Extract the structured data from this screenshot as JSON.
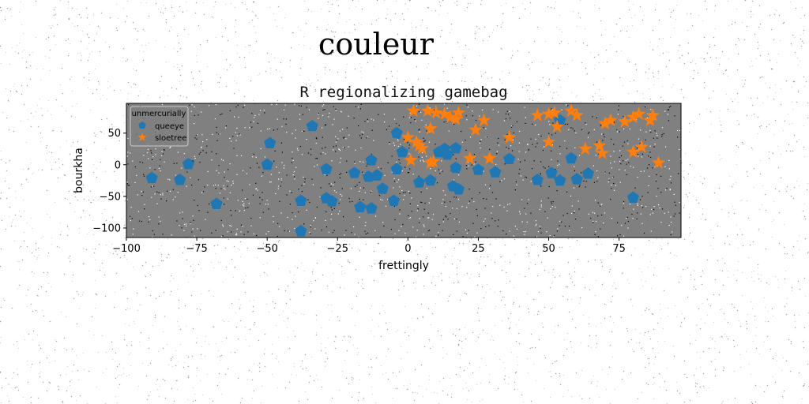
{
  "figure": {
    "suptitle": "couleur"
  },
  "chart_data": {
    "type": "scatter",
    "title": "R regionalizing gamebag",
    "xlabel": "frettingly",
    "ylabel": "bourkha",
    "xlim": [
      -100,
      97
    ],
    "ylim": [
      -115,
      97
    ],
    "xticks": [
      -100,
      -75,
      -50,
      -25,
      0,
      25,
      50,
      75
    ],
    "yticks": [
      -100,
      -50,
      0,
      50
    ],
    "grid": false,
    "background": "#808080",
    "legend": {
      "title": "unmercurially",
      "position": "top-left"
    },
    "series": [
      {
        "name": "queeye",
        "marker": "pentagon",
        "color": "#1f77b4",
        "points": [
          [
            -91,
            -21
          ],
          [
            -81,
            -24
          ],
          [
            -78,
            1
          ],
          [
            -68,
            -62
          ],
          [
            -49,
            34
          ],
          [
            -50,
            0
          ],
          [
            -34,
            61
          ],
          [
            -38,
            -57
          ],
          [
            -38,
            -105
          ],
          [
            -29,
            -7
          ],
          [
            -29,
            -53
          ],
          [
            -27,
            -58
          ],
          [
            -19,
            -13
          ],
          [
            -17,
            -67
          ],
          [
            -14,
            -19
          ],
          [
            -13,
            -69
          ],
          [
            -11,
            -17
          ],
          [
            -9,
            -38
          ],
          [
            -13,
            7
          ],
          [
            -5,
            -57
          ],
          [
            -4,
            -7
          ],
          [
            -4,
            50
          ],
          [
            -2,
            20
          ],
          [
            4,
            -28
          ],
          [
            8,
            -25
          ],
          [
            11,
            20
          ],
          [
            13,
            25
          ],
          [
            17,
            26
          ],
          [
            14,
            16
          ],
          [
            16,
            -34
          ],
          [
            18,
            -39
          ],
          [
            17,
            -5
          ],
          [
            25,
            -8
          ],
          [
            31,
            -12
          ],
          [
            36,
            9
          ],
          [
            46,
            -24
          ],
          [
            51,
            -13
          ],
          [
            54,
            -25
          ],
          [
            54,
            70
          ],
          [
            58,
            10
          ],
          [
            60,
            -23
          ],
          [
            64,
            -14
          ],
          [
            80,
            -52
          ]
        ]
      },
      {
        "name": "sloetree",
        "marker": "star",
        "color": "#ff7f0e",
        "points": [
          [
            2,
            85
          ],
          [
            7,
            85
          ],
          [
            10,
            82
          ],
          [
            13,
            80
          ],
          [
            15,
            75
          ],
          [
            17,
            72
          ],
          [
            18,
            82
          ],
          [
            8,
            57
          ],
          [
            0,
            43
          ],
          [
            3,
            36
          ],
          [
            4,
            30
          ],
          [
            5,
            26
          ],
          [
            1,
            7
          ],
          [
            8,
            3
          ],
          [
            9,
            5
          ],
          [
            24,
            55
          ],
          [
            27,
            70
          ],
          [
            22,
            10
          ],
          [
            29,
            10
          ],
          [
            36,
            43
          ],
          [
            46,
            78
          ],
          [
            50,
            80
          ],
          [
            52,
            82
          ],
          [
            50,
            36
          ],
          [
            53,
            60
          ],
          [
            58,
            85
          ],
          [
            60,
            78
          ],
          [
            63,
            25
          ],
          [
            68,
            30
          ],
          [
            69,
            18
          ],
          [
            70,
            65
          ],
          [
            72,
            70
          ],
          [
            77,
            68
          ],
          [
            80,
            75
          ],
          [
            82,
            80
          ],
          [
            86,
            70
          ],
          [
            87,
            78
          ],
          [
            80,
            20
          ],
          [
            83,
            28
          ],
          [
            89,
            3
          ]
        ]
      }
    ]
  }
}
